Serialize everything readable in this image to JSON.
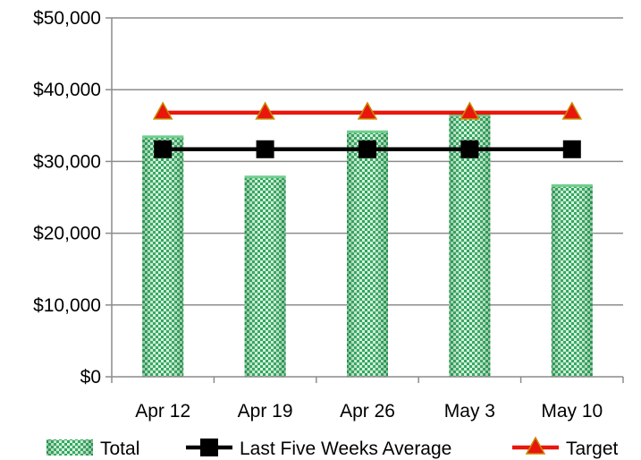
{
  "chart_data": {
    "type": "bar",
    "categories": [
      "Apr 12",
      "Apr 19",
      "Apr 26",
      "May 3",
      "May 10"
    ],
    "ylim": [
      0,
      50000
    ],
    "yticks": [
      0,
      10000,
      20000,
      30000,
      40000,
      50000
    ],
    "ytick_labels": [
      "$0",
      "$10,000",
      "$20,000",
      "$30,000",
      "$40,000",
      "$50,000"
    ],
    "grid": true,
    "legend_position": "bottom",
    "series": [
      {
        "name": "Total",
        "kind": "bar",
        "color": "#1f9e4a",
        "values": [
          33500,
          27900,
          34200,
          36500,
          26700
        ]
      },
      {
        "name": "Last Five Weeks Average",
        "kind": "line",
        "marker": "square",
        "color": "#000000",
        "values": [
          31700,
          31700,
          31700,
          31700,
          31700
        ]
      },
      {
        "name": "Target",
        "kind": "line",
        "marker": "triangle",
        "color": "#e8160c",
        "marker_color": "#c98a00",
        "values": [
          36800,
          36800,
          36800,
          36800,
          36800
        ]
      }
    ]
  }
}
